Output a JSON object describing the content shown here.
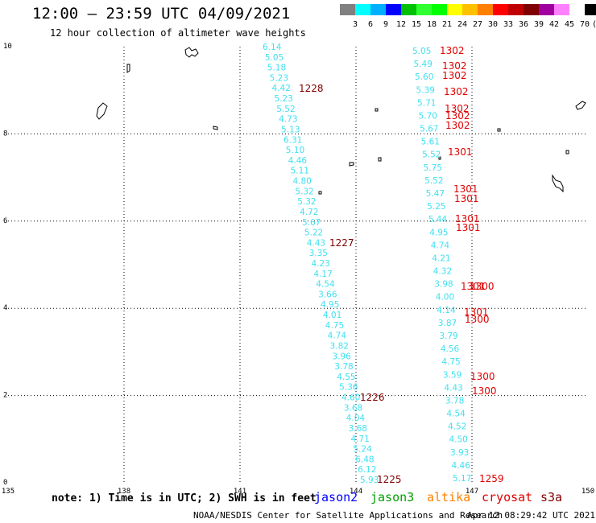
{
  "header": {
    "title": "12:00 – 23:59 UTC 04/09/2021",
    "subtitle": "12 hour collection of altimeter wave heights"
  },
  "color_scale": {
    "labels": [
      "3",
      "6",
      "9",
      "12",
      "15",
      "18",
      "21",
      "24",
      "27",
      "30",
      "33",
      "36",
      "39",
      "42",
      "45",
      "70",
      "(ft)"
    ],
    "colors": [
      "#808080",
      "#00ffff",
      "#00b0ff",
      "#0000ff",
      "#00c000",
      "#30ff30",
      "#00ff00",
      "#ffff00",
      "#ffc000",
      "#ff8000",
      "#ff0000",
      "#c00000",
      "#800000",
      "#a000a0",
      "#ff80ff",
      "#ffffff",
      "#000000"
    ]
  },
  "axes": {
    "x_ticks": [
      "135",
      "138",
      "141",
      "144",
      "147",
      "150"
    ],
    "y_ticks": [
      "0",
      "2",
      "4",
      "6",
      "8",
      "10"
    ]
  },
  "tracks": {
    "west": {
      "color": "#40e0f0",
      "values": [
        "6.14",
        "5.05",
        "5.18",
        "5.23",
        "4.42",
        "5.23",
        "5.52",
        "4.73",
        "5.13",
        "6.31",
        "5.10",
        "4.46",
        "5.11",
        "4.80",
        "5.32",
        "5.32",
        "4.72",
        "5.67",
        "5.22",
        "4.43",
        "3.35",
        "4.23",
        "4.17",
        "4.54",
        "3.66",
        "4.95",
        "4.01",
        "4.75",
        "4.74",
        "3.82",
        "3.96",
        "3.78",
        "4.55",
        "5.36",
        "4.60",
        "3.68",
        "4.04",
        "3.68",
        "4.71",
        "5.24",
        "6.48",
        "6.12",
        "5.93"
      ]
    },
    "east": {
      "color": "#40e0f0",
      "values": [
        "5.05",
        "5.49",
        "5.60",
        "5.39",
        "5.71",
        "5.70",
        "5.67",
        "5.61",
        "5.52",
        "5.75",
        "5.52",
        "5.47",
        "5.25",
        "5.44",
        "4.95",
        "4.74",
        "4.21",
        "4.32",
        "3.98",
        "4.00",
        "4.14",
        "3.87",
        "3.79",
        "4.56",
        "4.75",
        "3.59",
        "4.43",
        "3.78",
        "4.54",
        "4.52",
        "4.50",
        "3.93",
        "4.46",
        "5.17"
      ]
    }
  },
  "time_labels": {
    "west": [
      {
        "text": "1228",
        "color": "#800000"
      },
      {
        "text": "1227",
        "color": "#800000"
      },
      {
        "text": "1226",
        "color": "#800000"
      },
      {
        "text": "1225",
        "color": "#800000"
      }
    ],
    "east": [
      {
        "text": "1302",
        "color": "#e00000"
      },
      {
        "text": "1302",
        "color": "#e00000"
      },
      {
        "text": "1302",
        "color": "#e00000"
      },
      {
        "text": "1302",
        "color": "#e00000"
      },
      {
        "text": "1302",
        "color": "#e00000"
      },
      {
        "text": "1302",
        "color": "#e00000"
      },
      {
        "text": "1302",
        "color": "#e00000"
      },
      {
        "text": "1301",
        "color": "#e00000"
      },
      {
        "text": "1301",
        "color": "#e00000"
      },
      {
        "text": "1301",
        "color": "#e00000"
      },
      {
        "text": "1301",
        "color": "#e00000"
      },
      {
        "text": "1301",
        "color": "#e00000"
      },
      {
        "text": "1301",
        "color": "#e00000"
      },
      {
        "text": "1301",
        "color": "#e00000"
      },
      {
        "text": "1300",
        "color": "#e00000"
      },
      {
        "text": "1300",
        "color": "#e00000"
      },
      {
        "text": "1300",
        "color": "#e00000"
      },
      {
        "text": "1300",
        "color": "#e00000"
      },
      {
        "text": "1259",
        "color": "#e00000"
      }
    ]
  },
  "footer": {
    "note": "note: 1) Time is in UTC; 2) SWH is in feet",
    "legend": [
      {
        "name": "jason2",
        "color": "#0000ff"
      },
      {
        "name": "jason3",
        "color": "#00a000"
      },
      {
        "name": "altika",
        "color": "#ff8000"
      },
      {
        "name": "cryosat",
        "color": "#e00000"
      },
      {
        "name": "s3a",
        "color": "#800000"
      }
    ],
    "credit": "NOAA/NESDIS Center for Satellite Applications and Research",
    "timestamp": "Apr 12 08:29:42 UTC 2021"
  }
}
